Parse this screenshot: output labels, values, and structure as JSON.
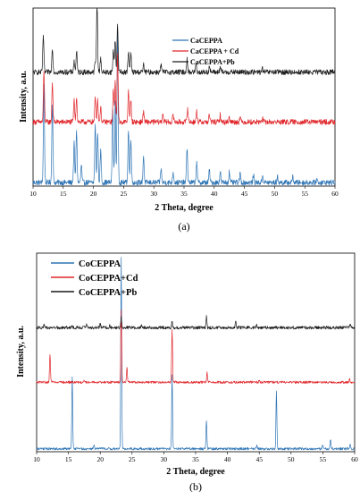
{
  "chart_data": [
    {
      "type": "line",
      "caption": "(a)",
      "xlabel": "2 Theta, degree",
      "ylabel": "Intensity, a.u.",
      "xlim": [
        10,
        60
      ],
      "xticks": [
        10,
        15,
        20,
        25,
        30,
        35,
        40,
        45,
        50,
        55,
        60
      ],
      "grid": false,
      "legend_position": "upper-center",
      "series": [
        {
          "name": "CaCEPPA",
          "color": "#2e75b6",
          "baseline": 0.02,
          "noise": 0.015,
          "peaks": [
            [
              11.8,
              0.55
            ],
            [
              13.2,
              0.45
            ],
            [
              16.8,
              0.22
            ],
            [
              17.2,
              0.3
            ],
            [
              18.0,
              0.1
            ],
            [
              20.3,
              0.32
            ],
            [
              20.7,
              0.28
            ],
            [
              21.2,
              0.18
            ],
            [
              23.2,
              0.42
            ],
            [
              23.6,
              0.45
            ],
            [
              24.0,
              0.85
            ],
            [
              25.8,
              0.3
            ],
            [
              26.2,
              0.25
            ],
            [
              28.3,
              0.15
            ],
            [
              31.2,
              0.08
            ],
            [
              33.2,
              0.06
            ],
            [
              35.5,
              0.2
            ],
            [
              37.1,
              0.12
            ],
            [
              39.2,
              0.07
            ],
            [
              41.0,
              0.06
            ],
            [
              42.5,
              0.06
            ],
            [
              44.3,
              0.05
            ],
            [
              46.5,
              0.04
            ],
            [
              48.0,
              0.04
            ],
            [
              50.5,
              0.03
            ],
            [
              53.0,
              0.03
            ],
            [
              57.0,
              0.02
            ]
          ]
        },
        {
          "name": "CaCEPPA + Cd",
          "color": "#e0262b",
          "baseline": 0.36,
          "noise": 0.015,
          "peaks": [
            [
              11.8,
              0.28
            ],
            [
              13.2,
              0.22
            ],
            [
              16.8,
              0.12
            ],
            [
              17.2,
              0.14
            ],
            [
              20.3,
              0.14
            ],
            [
              20.7,
              0.12
            ],
            [
              21.2,
              0.08
            ],
            [
              23.3,
              0.18
            ],
            [
              23.6,
              0.22
            ],
            [
              24.0,
              0.38
            ],
            [
              25.8,
              0.18
            ],
            [
              26.2,
              0.12
            ],
            [
              28.3,
              0.06
            ],
            [
              31.5,
              0.05
            ],
            [
              33.2,
              0.04
            ],
            [
              35.6,
              0.08
            ],
            [
              37.1,
              0.06
            ],
            [
              39.2,
              0.04
            ],
            [
              41.0,
              0.04
            ],
            [
              42.5,
              0.03
            ],
            [
              44.3,
              0.03
            ],
            [
              48.0,
              0.02
            ]
          ]
        },
        {
          "name": "CaCEPPA+Pb",
          "color": "#1a1a1a",
          "baseline": 0.64,
          "noise": 0.015,
          "peaks": [
            [
              11.7,
              0.21
            ],
            [
              13.2,
              0.14
            ],
            [
              16.8,
              0.06
            ],
            [
              17.2,
              0.12
            ],
            [
              20.3,
              0.06
            ],
            [
              20.6,
              0.4
            ],
            [
              21.2,
              0.08
            ],
            [
              23.3,
              0.12
            ],
            [
              23.6,
              0.18
            ],
            [
              24.0,
              0.27
            ],
            [
              25.8,
              0.12
            ],
            [
              26.2,
              0.1
            ],
            [
              28.3,
              0.04
            ],
            [
              31.2,
              0.04
            ],
            [
              35.5,
              0.07
            ],
            [
              37.0,
              0.05
            ],
            [
              39.2,
              0.03
            ],
            [
              41.0,
              0.03
            ],
            [
              48.0,
              0.02
            ]
          ]
        }
      ]
    },
    {
      "type": "line",
      "caption": "(b)",
      "xlabel": "2 Theta, degree",
      "ylabel": "Intensity, a.u.",
      "xlim": [
        10,
        60
      ],
      "xticks": [
        10,
        15,
        20,
        25,
        30,
        35,
        40,
        45,
        50,
        55,
        60
      ],
      "grid": false,
      "legend_position": "upper-left",
      "series": [
        {
          "name": "CoCEPPA",
          "color": "#2e75b6",
          "baseline": 0.015,
          "noise": 0.006,
          "peaks": [
            [
              15.6,
              0.36
            ],
            [
              19.0,
              0.02
            ],
            [
              23.3,
              0.96
            ],
            [
              31.3,
              0.37
            ],
            [
              36.7,
              0.14
            ],
            [
              44.6,
              0.02
            ],
            [
              47.7,
              0.29
            ],
            [
              55.0,
              0.02
            ],
            [
              56.2,
              0.05
            ],
            [
              59.3,
              0.02
            ]
          ]
        },
        {
          "name": "CoCEPPA+Cd",
          "color": "#e0262b",
          "baseline": 0.35,
          "noise": 0.006,
          "peaks": [
            [
              12.1,
              0.14
            ],
            [
              17.5,
              0.012
            ],
            [
              23.3,
              0.36
            ],
            [
              24.2,
              0.08
            ],
            [
              31.3,
              0.27
            ],
            [
              36.8,
              0.05
            ],
            [
              45.0,
              0.01
            ],
            [
              59.2,
              0.015
            ]
          ]
        },
        {
          "name": "CoCEPPA+Pb",
          "color": "#1a1a1a",
          "baseline": 0.625,
          "noise": 0.008,
          "peaks": [
            [
              11.2,
              0.015
            ],
            [
              15.6,
              0.015
            ],
            [
              17.9,
              0.02
            ],
            [
              20.0,
              0.02
            ],
            [
              21.5,
              0.015
            ],
            [
              23.3,
              0.05
            ],
            [
              26.5,
              0.01
            ],
            [
              31.3,
              0.03
            ],
            [
              36.7,
              0.055
            ],
            [
              41.3,
              0.035
            ],
            [
              44.6,
              0.015
            ],
            [
              59.3,
              0.015
            ]
          ]
        }
      ]
    }
  ]
}
